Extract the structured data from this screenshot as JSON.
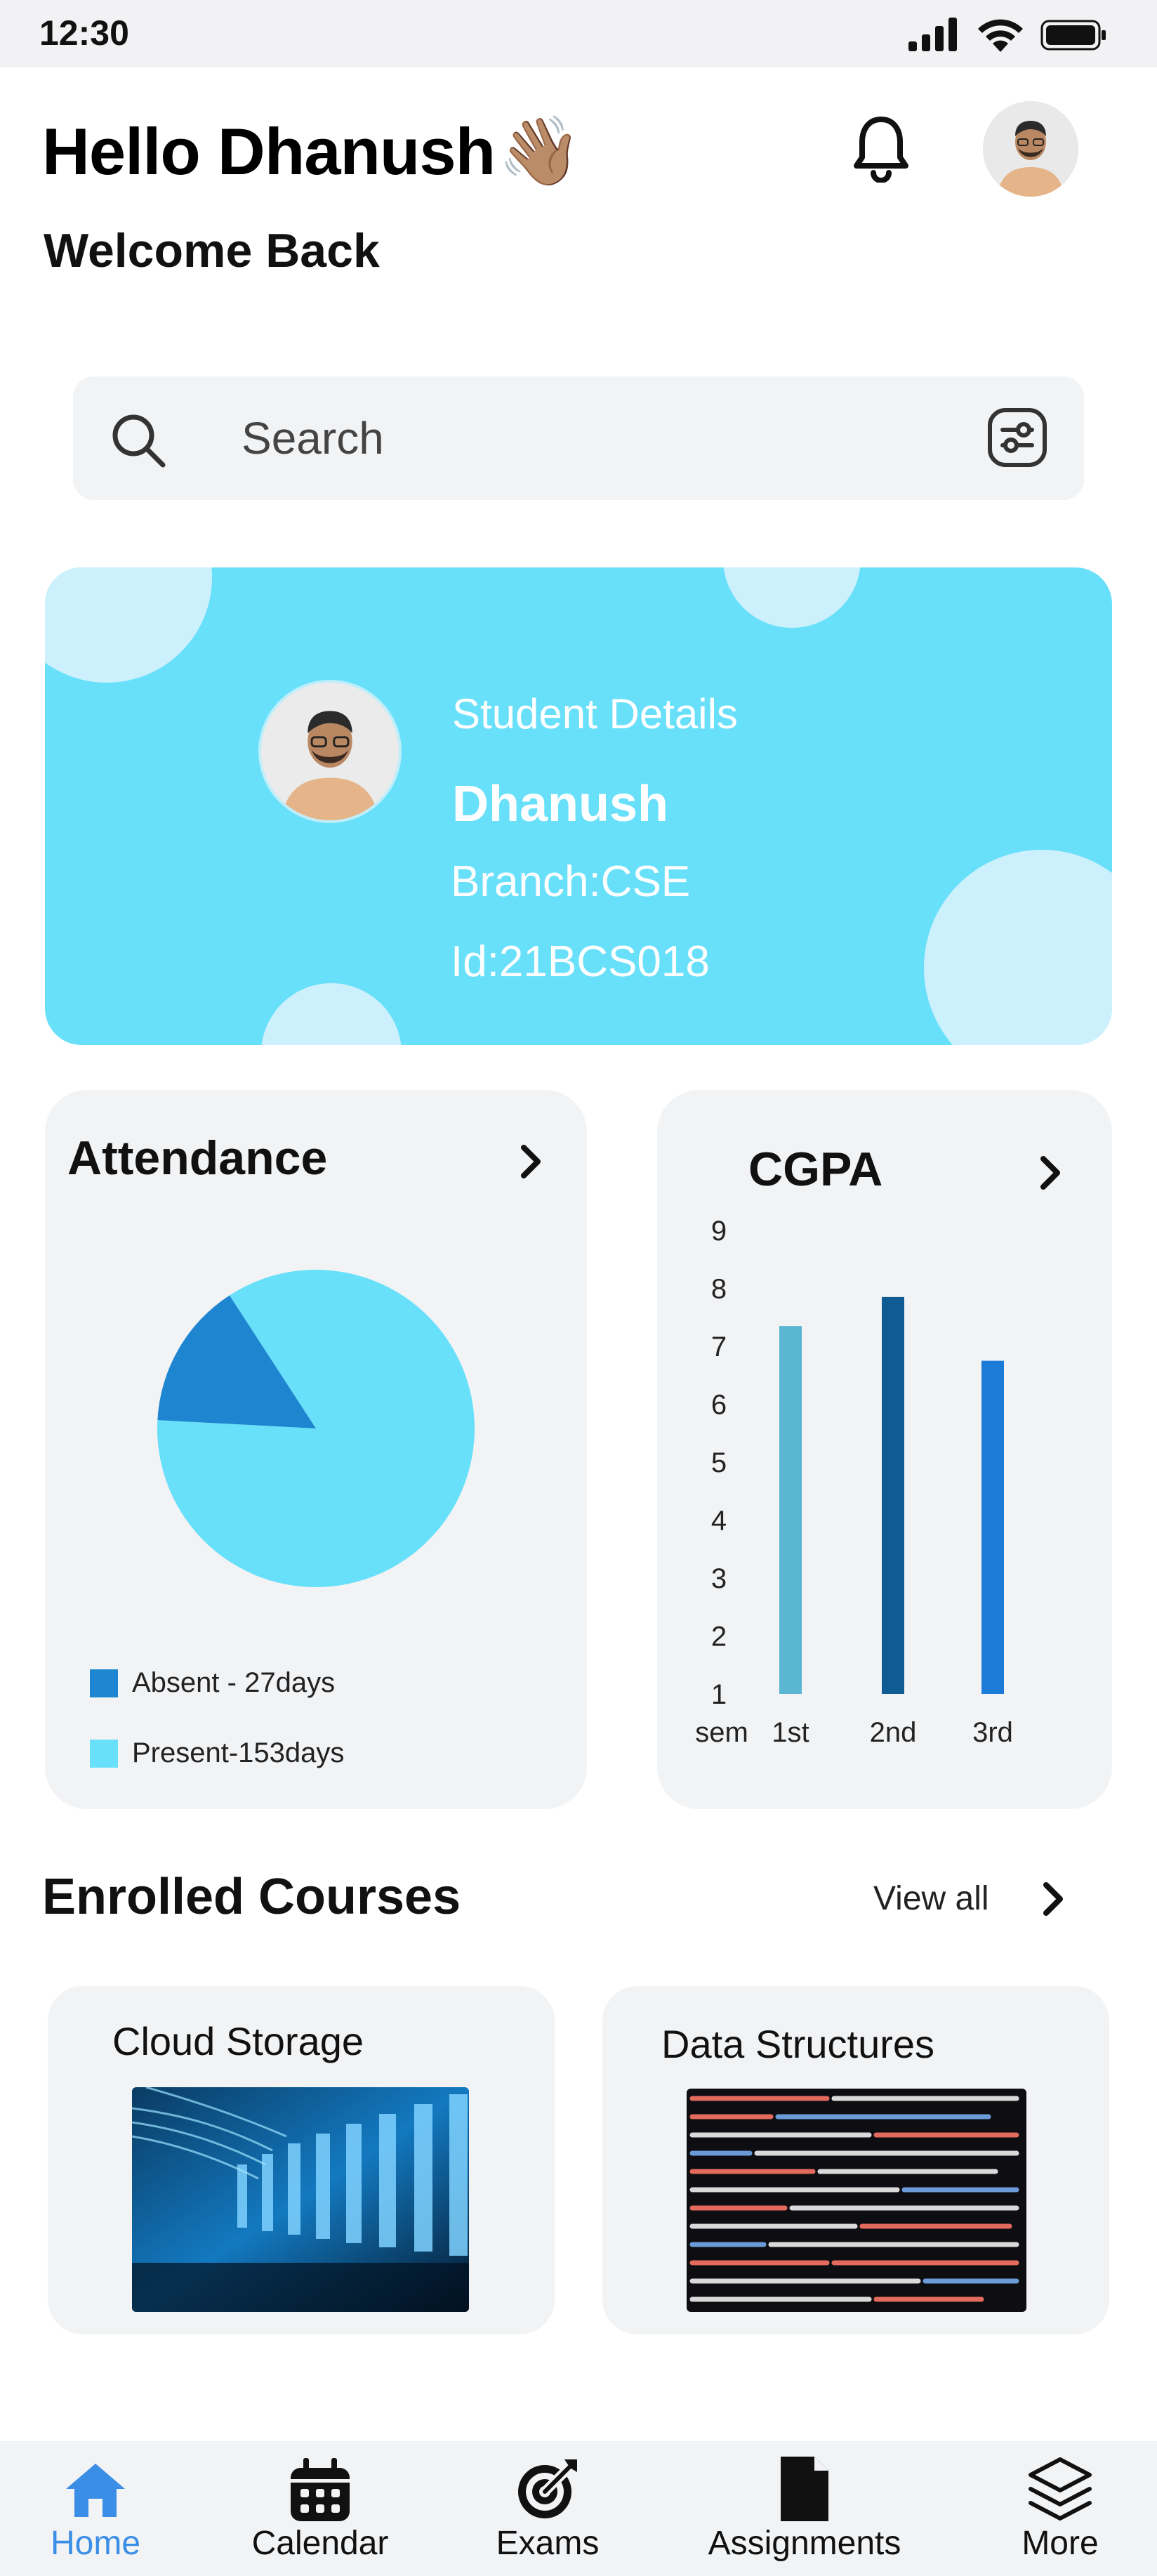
{
  "status_bar": {
    "time": "12:30"
  },
  "header": {
    "greeting": "Hello Dhanush",
    "wave_emoji": "👋🏽",
    "subtitle": "Welcome Back"
  },
  "search": {
    "placeholder": "Search"
  },
  "student": {
    "label": "Student Details",
    "name": "Dhanush",
    "branch": "Branch:CSE",
    "id": "Id:21BCS018"
  },
  "attendance": {
    "title": "Attendance",
    "chart_data": {
      "type": "pie",
      "slices": [
        {
          "name": "Absent - 27days",
          "value": 27,
          "color": "#1e86d0"
        },
        {
          "name": "Present-153days",
          "value": 153,
          "color": "#69e0fa"
        }
      ]
    }
  },
  "cgpa": {
    "title": "CGPA",
    "chart_data": {
      "type": "bar",
      "categories": [
        "1st",
        "2nd",
        "3rd"
      ],
      "values": [
        7.35,
        7.85,
        6.75
      ],
      "colors": [
        "#5ab6d2",
        "#0f5c94",
        "#1c7bd6"
      ],
      "yticks": [
        1,
        2,
        3,
        4,
        5,
        6,
        7,
        8,
        9
      ],
      "ylim": [
        1,
        9
      ],
      "xlabel": "sem"
    }
  },
  "courses": {
    "title": "Enrolled Courses",
    "view_all": "View all",
    "items": [
      {
        "title": "Cloud Storage"
      },
      {
        "title": "Data Structures"
      }
    ]
  },
  "bottom_nav": [
    {
      "label": "Home",
      "icon": "home-icon",
      "active": true
    },
    {
      "label": "Calendar",
      "icon": "calendar-icon",
      "active": false
    },
    {
      "label": "Exams",
      "icon": "target-icon",
      "active": false
    },
    {
      "label": "Assignments",
      "icon": "document-icon",
      "active": false
    },
    {
      "label": "More",
      "icon": "layers-icon",
      "active": false
    }
  ],
  "colors": {
    "accent": "#69e0fa",
    "active_nav": "#3a8ee6",
    "panel_bg": "#f2f3f5"
  }
}
